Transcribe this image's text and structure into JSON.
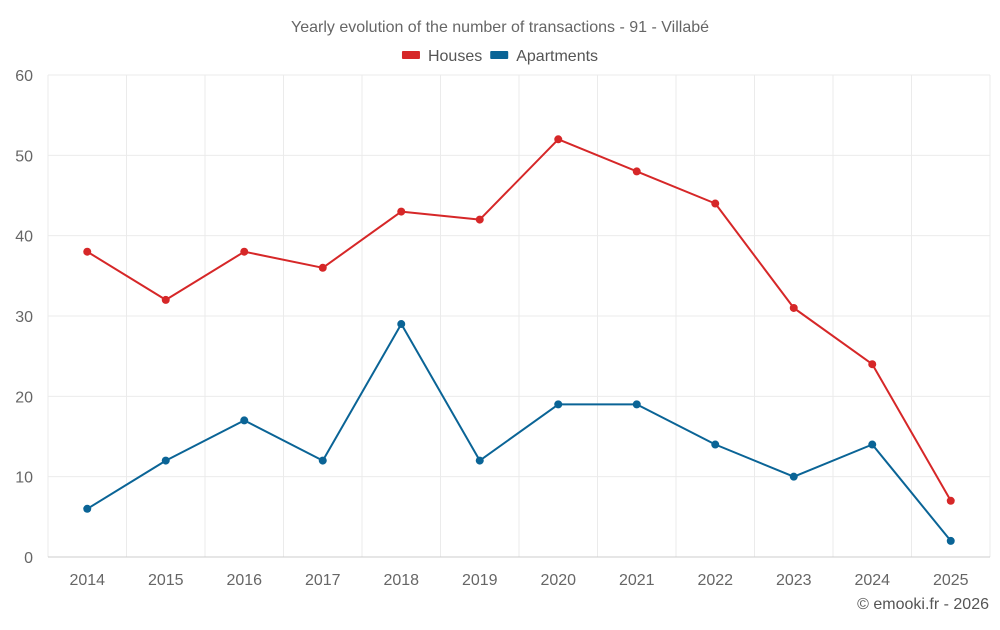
{
  "chart_data": {
    "type": "line",
    "title": "Yearly evolution of the number of transactions - 91 - Villabé",
    "xlabel": "",
    "ylabel": "",
    "categories": [
      "2014",
      "2015",
      "2016",
      "2017",
      "2018",
      "2019",
      "2020",
      "2021",
      "2022",
      "2023",
      "2024",
      "2025"
    ],
    "ylim": [
      0,
      60
    ],
    "yticks": [
      0,
      10,
      20,
      30,
      40,
      50,
      60
    ],
    "grid": true,
    "legend_position": "top-center",
    "series": [
      {
        "name": "Houses",
        "color": "#d62728",
        "values": [
          38,
          32,
          38,
          36,
          43,
          42,
          52,
          48,
          44,
          31,
          24,
          7
        ]
      },
      {
        "name": "Apartments",
        "color": "#0a6496",
        "values": [
          6,
          12,
          17,
          12,
          29,
          12,
          19,
          19,
          14,
          10,
          14,
          2
        ]
      }
    ]
  },
  "credit": "© emooki.fr - 2026"
}
